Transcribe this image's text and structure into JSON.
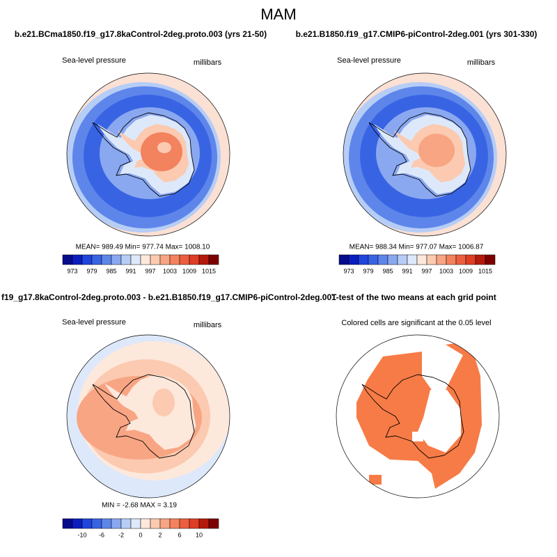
{
  "title": "MAM",
  "panels": [
    {
      "title": "b.e21.BCma1850.f19_g17.8kaControl-2deg.proto.003 (yrs 21-50)",
      "left_label": "Sea-level pressure",
      "right_label": "millibars",
      "stats": "MEAN= 989.49  Min= 977.74  Max= 1008.10",
      "colorbar": {
        "colors": [
          "#060c8c",
          "#0a1ec0",
          "#2045dc",
          "#3864e4",
          "#5e86ea",
          "#8aa8f0",
          "#b6cdf6",
          "#dde9fb",
          "#fde8dc",
          "#fbcab0",
          "#f8a584",
          "#f3825e",
          "#ec5f3e",
          "#de3e24",
          "#b41a0c",
          "#7d0000"
        ],
        "labels": [
          973,
          979,
          985,
          991,
          997,
          1003,
          1009,
          1015
        ]
      }
    },
    {
      "title": "b.e21.B1850.f19_g17.CMIP6-piControl-2deg.001 (yrs 301-330)",
      "left_label": "Sea-level pressure",
      "right_label": "millibars",
      "stats": "MEAN= 988.34  Min= 977.07  Max= 1006.87",
      "colorbar": {
        "colors": [
          "#060c8c",
          "#0a1ec0",
          "#2045dc",
          "#3864e4",
          "#5e86ea",
          "#8aa8f0",
          "#b6cdf6",
          "#dde9fb",
          "#fde8dc",
          "#fbcab0",
          "#f8a584",
          "#f3825e",
          "#ec5f3e",
          "#de3e24",
          "#b41a0c",
          "#7d0000"
        ],
        "labels": [
          973,
          979,
          985,
          991,
          997,
          1003,
          1009,
          1015
        ]
      }
    },
    {
      "title": "f19_g17.8kaControl-2deg.proto.003 - b.e21.B1850.f19_g17.CMIP6-piControl-2deg.001",
      "left_label": "Sea-level pressure",
      "right_label": "millibars",
      "stats": "MIN =  -2.68 MAX =   3.19",
      "colorbar": {
        "colors": [
          "#060c8c",
          "#0a1ec0",
          "#2045dc",
          "#3864e4",
          "#5e86ea",
          "#8aa8f0",
          "#b6cdf6",
          "#dde9fb",
          "#fde8dc",
          "#fbcab0",
          "#f8a584",
          "#f3825e",
          "#ec5f3e",
          "#de3e24",
          "#b41a0c",
          "#7d0000"
        ],
        "labels": [
          -10,
          -6,
          -2,
          0,
          2,
          6,
          10
        ]
      }
    },
    {
      "title": "T-test of the two means at each grid point",
      "subtitle": "Colored cells are significant at the 0.05 level"
    }
  ]
}
